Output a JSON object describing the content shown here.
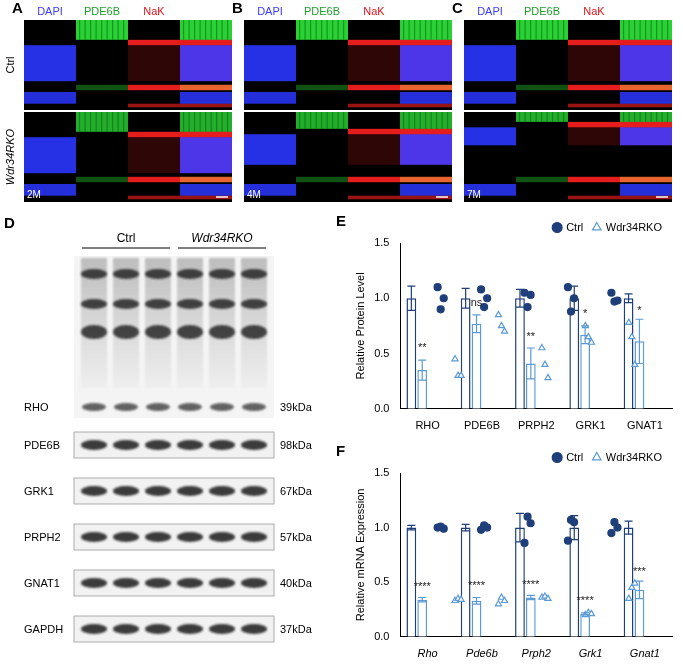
{
  "image_panels": {
    "channels": [
      "DAPI",
      "PDE6B",
      "NaK"
    ],
    "rows": [
      "Ctrl",
      "Wdr34RKO"
    ],
    "panels": [
      {
        "letter": "A",
        "time": "2M"
      },
      {
        "letter": "B",
        "time": "4M"
      },
      {
        "letter": "C",
        "time": "7M"
      }
    ]
  },
  "blot": {
    "letter": "D",
    "groups": [
      "Ctrl",
      "Wdr34RKO"
    ],
    "bands": [
      {
        "label": "RHO",
        "size": "39kDa"
      },
      {
        "label": "PDE6B",
        "size": "98kDa"
      },
      {
        "label": "GRK1",
        "size": "67kDa"
      },
      {
        "label": "PRPH2",
        "size": "57kDa"
      },
      {
        "label": "GNAT1",
        "size": "40kDa"
      },
      {
        "label": "GAPDH",
        "size": "37kDa"
      }
    ]
  },
  "chart_data": [
    {
      "letter": "E",
      "type": "bar",
      "y_label": "Relative Protein Level",
      "categories": [
        "RHO",
        "PDE6B",
        "PRPH2",
        "GRK1",
        "GNAT1"
      ],
      "ylim": [
        0,
        1.5
      ],
      "yticks": [
        {
          "value": 0,
          "label": "0.0"
        },
        0.5,
        {
          "value": 1,
          "label": "1.0"
        },
        1.5
      ],
      "grid": false,
      "legend": "upper right",
      "series": [
        {
          "name": "Ctrl",
          "color": "#1f3f7a",
          "marker": "circle",
          "values": [
            1,
            1,
            1,
            1,
            1
          ],
          "errors": [
            0.11,
            0.09,
            0.08,
            0.11,
            0.04
          ],
          "points": [
            [
              1.1,
              0.9,
              1.0
            ],
            [
              1.08,
              0.92,
              1.0
            ],
            [
              1.05,
              0.92,
              1.03
            ],
            [
              1.1,
              0.88,
              1.0
            ],
            [
              1.05,
              0.97,
              0.98
            ]
          ]
        },
        {
          "name": "Wdr34RKO",
          "color": "#5b9bd5",
          "marker": "open-triangle",
          "values": [
            0.35,
            0.77,
            0.41,
            0.67,
            0.61
          ],
          "errors": [
            0.09,
            0.08,
            0.14,
            0.08,
            0.2
          ],
          "points": [
            [
              0.45,
              0.3,
              0.3
            ],
            [
              0.85,
              0.75,
              0.7
            ],
            [
              0.55,
              0.4,
              0.28
            ],
            [
              0.75,
              0.65,
              0.6
            ],
            [
              0.78,
              0.65,
              0.4
            ]
          ],
          "significance": [
            "**",
            "ns",
            "**",
            "*",
            "*"
          ]
        }
      ]
    },
    {
      "letter": "F",
      "type": "bar",
      "y_label": "Relative mRNA Expression",
      "categories": [
        "Rho",
        "Pde6b",
        "Prph2",
        "Grk1",
        "Gnat1"
      ],
      "ylim": [
        0,
        1.5
      ],
      "yticks": [
        {
          "value": 0,
          "label": "0.0"
        },
        0.5,
        {
          "value": 1,
          "label": "1.0"
        },
        1.5
      ],
      "grid": false,
      "legend": "upper right",
      "series": [
        {
          "name": "Ctrl",
          "color": "#1f3f7a",
          "marker": "circle",
          "values": [
            1,
            1,
            1,
            1,
            1
          ],
          "errors": [
            0.02,
            0.03,
            0.13,
            0.11,
            0.06
          ],
          "points": [
            [
              1.0,
              1.01,
              0.99
            ],
            [
              0.98,
              1.02,
              1.0
            ],
            [
              0.86,
              1.1,
              1.04
            ],
            [
              0.88,
              1.07,
              1.05
            ],
            [
              0.95,
              1.05,
              1.0
            ]
          ]
        },
        {
          "name": "Wdr34RKO",
          "color": "#5b9bd5",
          "marker": "open-triangle",
          "values": [
            0.34,
            0.33,
            0.36,
            0.21,
            0.43
          ],
          "errors": [
            0.02,
            0.03,
            0.02,
            0.01,
            0.08
          ],
          "points": [
            [
              0.33,
              0.35,
              0.34
            ],
            [
              0.3,
              0.36,
              0.33
            ],
            [
              0.36,
              0.37,
              0.35
            ],
            [
              0.2,
              0.22,
              0.21
            ],
            [
              0.35,
              0.45,
              0.49
            ]
          ],
          "significance": [
            "****",
            "****",
            "****",
            "****",
            "***"
          ]
        }
      ]
    }
  ]
}
